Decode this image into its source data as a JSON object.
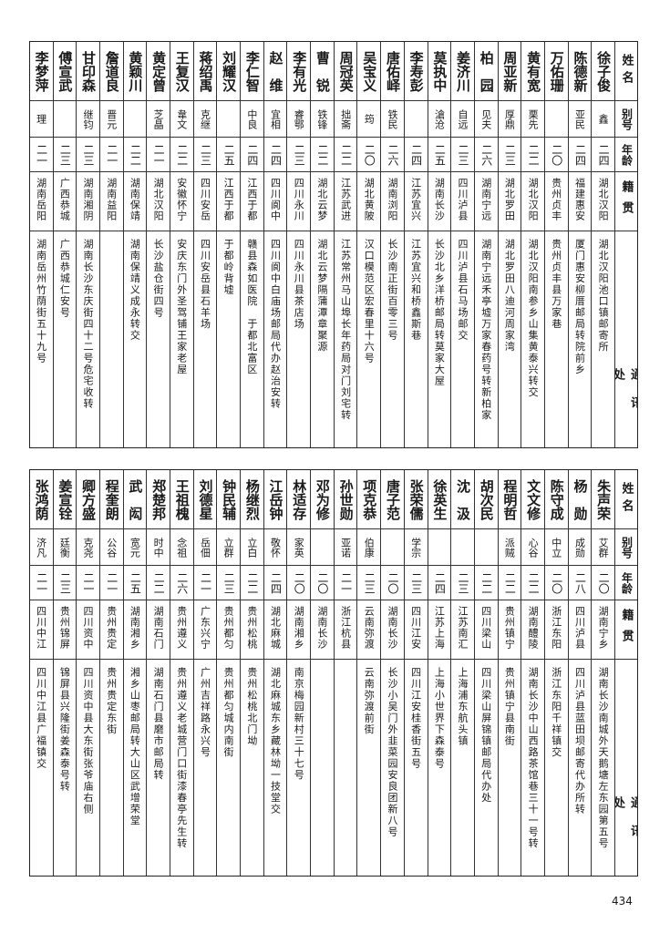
{
  "headers": {
    "name": "姓名",
    "alias": "别号",
    "age": "年龄",
    "origin": "籍贯",
    "address": "通讯处"
  },
  "top_entries": [
    {
      "name": "徐子俊",
      "alias": "鑫",
      "age": "二四",
      "origin": "湖北汉阳",
      "address": "湖北汉阳池口镇邮寄所"
    },
    {
      "name": "陈德新",
      "alias": "亚民",
      "age": "二四",
      "origin": "福建惠安",
      "address": "厦门惠安柳厝邮局转院前乡"
    },
    {
      "name": "万佑珊",
      "alias": "",
      "age": "二〇",
      "origin": "贵州贞丰",
      "address": "贵州贞丰县万家巷"
    },
    {
      "name": "黄有宽",
      "alias": "栗先",
      "age": "二二",
      "origin": "湖北汉阳",
      "address": "湖北汉阳南参乡山集黄泰兴转交"
    },
    {
      "name": "周亚新",
      "alias": "厚鼎",
      "age": "二三",
      "origin": "湖北罗田",
      "address": "湖北罗田八迪河周家湾"
    },
    {
      "name": "柏　园",
      "alias": "见夫",
      "age": "二六",
      "origin": "湖南宁远",
      "address": "湖南宁远禾亭墟万家春药号转新柏家"
    },
    {
      "name": "姜济川",
      "alias": "自远",
      "age": "二三",
      "origin": "四川泸县",
      "address": "四川泸县石马场邮交"
    },
    {
      "name": "莫执中",
      "alias": "滄沧",
      "age": "二五",
      "origin": "湖南长沙",
      "address": "长沙北乡洋桥邮局转莫家大屋"
    },
    {
      "name": "李寿彭",
      "alias": "",
      "age": "二四",
      "origin": "江苏宜兴",
      "address": "江苏宜兴和桥鑫斯巷"
    },
    {
      "name": "唐佑峄",
      "alias": "铁民",
      "age": "二六",
      "origin": "湖南浏阳",
      "address": "长沙南正街百零三号"
    },
    {
      "name": "吴宝义",
      "alias": "筠",
      "age": "二〇",
      "origin": "湖北黄陂",
      "address": "汉口模范区宏春里十六号"
    },
    {
      "name": "周冠英",
      "alias": "拙斋",
      "age": "二二",
      "origin": "江苏武进",
      "address": "江苏常州马山埠长年药局对门刘宅转"
    },
    {
      "name": "曹　锐",
      "alias": "铁锋",
      "age": "二二",
      "origin": "湖北云梦",
      "address": "湖北云梦隔蒲潭章聚源"
    },
    {
      "name": "李有光",
      "alias": "睿鄂",
      "age": "二三",
      "origin": "四川永川",
      "address": "四川永川县茶店场"
    },
    {
      "name": "赵　维",
      "alias": "宜相",
      "age": "二四",
      "origin": "四川阆中",
      "address": "四川阆中白庙场邮局代办赵治安转"
    },
    {
      "name": "李仁智",
      "alias": "中良",
      "age": "二四",
      "origin": "江西于都",
      "address": "赣县森如医院　于都北富区"
    },
    {
      "name": "刘耀汉",
      "alias": "",
      "age": "二五",
      "origin": "江西于都",
      "address": "于都岭背墟"
    },
    {
      "name": "蒋绍禹",
      "alias": "克继",
      "age": "二三",
      "origin": "四川安岳",
      "address": "四川安岳县石羊场"
    },
    {
      "name": "王复汉",
      "alias": "韋文",
      "age": "二二",
      "origin": "安徽怀宁",
      "address": "安庆东门外圣驾铺王家老屋"
    },
    {
      "name": "黄定曾",
      "alias": "芝晶",
      "age": "二一",
      "origin": "湖北汉阳",
      "address": "长沙盐仓街四号"
    },
    {
      "name": "黄颖川",
      "alias": "",
      "age": "二二",
      "origin": "湖南保靖",
      "address": "湖南保靖义成永转交"
    },
    {
      "name": "詹道良",
      "alias": "晋元",
      "age": "二一",
      "origin": "湖南益阳",
      "address": ""
    },
    {
      "name": "甘印森",
      "alias": "继钧",
      "age": "二三",
      "origin": "湖南湘阴",
      "address": "湖南长沙东庆街四十二号危宅收转"
    },
    {
      "name": "傅宣武",
      "alias": "",
      "age": "二三",
      "origin": "广西恭城",
      "address": "广西恭城仁安号"
    },
    {
      "name": "李梦萍",
      "alias": "理",
      "age": "二一",
      "origin": "湖南岳阳",
      "address": "湖南岳州竹荫街五十九号"
    }
  ],
  "bottom_entries": [
    {
      "name": "朱声荣",
      "alias": "艾群",
      "age": "二〇",
      "origin": "湖南宁乡",
      "address": "湖南长沙南城外天鹅塘左东园第五号"
    },
    {
      "name": "杨　勋",
      "alias": "成勋",
      "age": "二八",
      "origin": "四川泸县",
      "address": "四川泸县蓝田坝邮寄代办所转"
    },
    {
      "name": "陈守成",
      "alias": "中立",
      "age": "二〇",
      "origin": "浙江东阳",
      "address": "浙江东阳千祥镇交"
    },
    {
      "name": "文文修",
      "alias": "心谷",
      "age": "二二",
      "origin": "湖南醴陵",
      "address": "湖南长沙中山西路茶馆巷三十一号转"
    },
    {
      "name": "程明哲",
      "alias": "派贼",
      "age": "二二",
      "origin": "贵州镇宁",
      "address": "贵州镇宁县南街"
    },
    {
      "name": "胡次民",
      "alias": "",
      "age": "二二",
      "origin": "四川梁山",
      "address": "四川梁山屏锦镇邮局代办处"
    },
    {
      "name": "沈　汲",
      "alias": "",
      "age": "二三",
      "origin": "江苏南汇",
      "address": "上海浦东航头镇"
    },
    {
      "name": "徐英生",
      "alias": "",
      "age": "二四",
      "origin": "江苏上海",
      "address": "上海小世界下森泰号"
    },
    {
      "name": "张荣儒",
      "alias": "学宗",
      "age": "二三",
      "origin": "四川江安",
      "address": "四川江安桂香街五号"
    },
    {
      "name": "唐子范",
      "alias": "",
      "age": "二〇",
      "origin": "湖南长沙",
      "address": "长沙小吴门外韭菜园安良团新八号"
    },
    {
      "name": "项克恭",
      "alias": "伯康",
      "age": "二三",
      "origin": "云南弥渡",
      "address": "云南弥渡前街"
    },
    {
      "name": "孙世勋",
      "alias": "亚诺",
      "age": "二一",
      "origin": "浙江杭县",
      "address": ""
    },
    {
      "name": "邓为修",
      "alias": "",
      "age": "二〇",
      "origin": "湖南长沙",
      "address": ""
    },
    {
      "name": "林适存",
      "alias": "家英",
      "age": "二〇",
      "origin": "湖南湘乡",
      "address": "南京梅园新村三十七号"
    },
    {
      "name": "江岳钟",
      "alias": "敬怀",
      "age": "二四",
      "origin": "湖北麻城",
      "address": "湖北麻城东乡藏林坳一技堂交"
    },
    {
      "name": "杨继烈",
      "alias": "立白",
      "age": "二二",
      "origin": "贵州松桃",
      "address": "贵州松桃北门坳"
    },
    {
      "name": "钟民辅",
      "alias": "立群",
      "age": "二三",
      "origin": "贵州都匀",
      "address": "贵州都匀城内南街"
    },
    {
      "name": "刘德星",
      "alias": "岳佃",
      "age": "二一",
      "origin": "广东兴宁",
      "address": "广州吉祥路永兴号"
    },
    {
      "name": "王祖槐",
      "alias": "念祖",
      "age": "二六",
      "origin": "贵州遵义",
      "address": "贵州遵义老城营门口街漆春亭先生转"
    },
    {
      "name": "郑楚邦",
      "alias": "时中",
      "age": "二二",
      "origin": "湖南石门",
      "address": "湖南石门县磨市邮局转"
    },
    {
      "name": "武　闳",
      "alias": "宽元",
      "age": "二五",
      "origin": "湖南湘乡",
      "address": "湘乡山枣邮局转大山区武增荣堂"
    },
    {
      "name": "程奎朗",
      "alias": "公谷",
      "age": "二一",
      "origin": "贵州贵定",
      "address": "贵州贵定东街"
    },
    {
      "name": "卿方盛",
      "alias": "克尧",
      "age": "二一",
      "origin": "四川资中",
      "address": "四川资中县大东街张爷庙右侧"
    },
    {
      "name": "姜宣铨",
      "alias": "廷衡",
      "age": "二三",
      "origin": "贵州锦屏",
      "address": "锦屏县兴隆街姜森泰号转"
    },
    {
      "name": "张鸿荫",
      "alias": "济凡",
      "age": "二一",
      "origin": "四川中江",
      "address": "四川中江县广福镇交"
    }
  ],
  "page_number": "434"
}
